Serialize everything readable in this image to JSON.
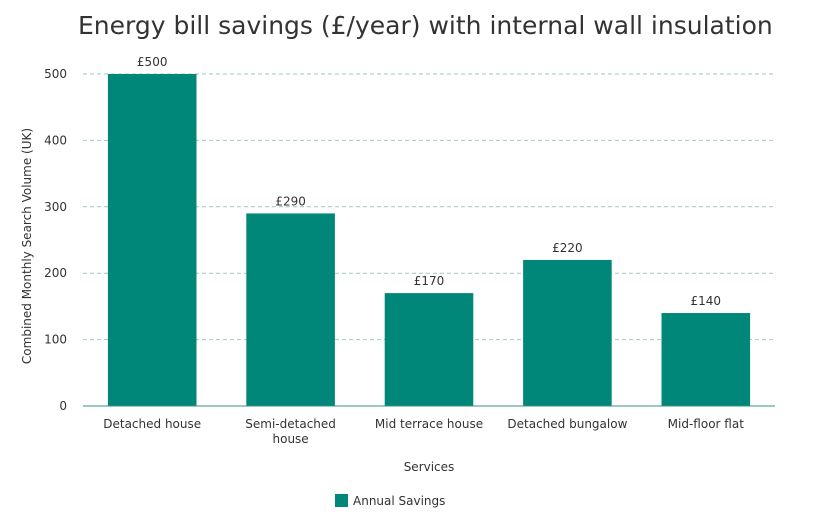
{
  "colors": {
    "bar": "#00877a",
    "grid": "#9fc9c4",
    "axis": "#3a8f87",
    "text": "#333333"
  },
  "chart_data": {
    "type": "bar",
    "title": "Energy bill savings (£/year) with internal wall insulation",
    "xlabel": "Services",
    "ylabel": "Combined Monthly Search Volume (UK)",
    "categories": [
      "Detached house",
      "Semi-detached house",
      "Mid terrace house",
      "Detached bungalow",
      "Mid-floor flat"
    ],
    "series": [
      {
        "name": "Annual Savings",
        "values": [
          500,
          290,
          170,
          220,
          140
        ],
        "labels": [
          "£500",
          "£290",
          "£170",
          "£220",
          "£140"
        ]
      }
    ],
    "ylim": [
      0,
      500
    ],
    "yticks": [
      0,
      100,
      200,
      300,
      400,
      500
    ],
    "grid": true,
    "legend": "bottom-center"
  }
}
